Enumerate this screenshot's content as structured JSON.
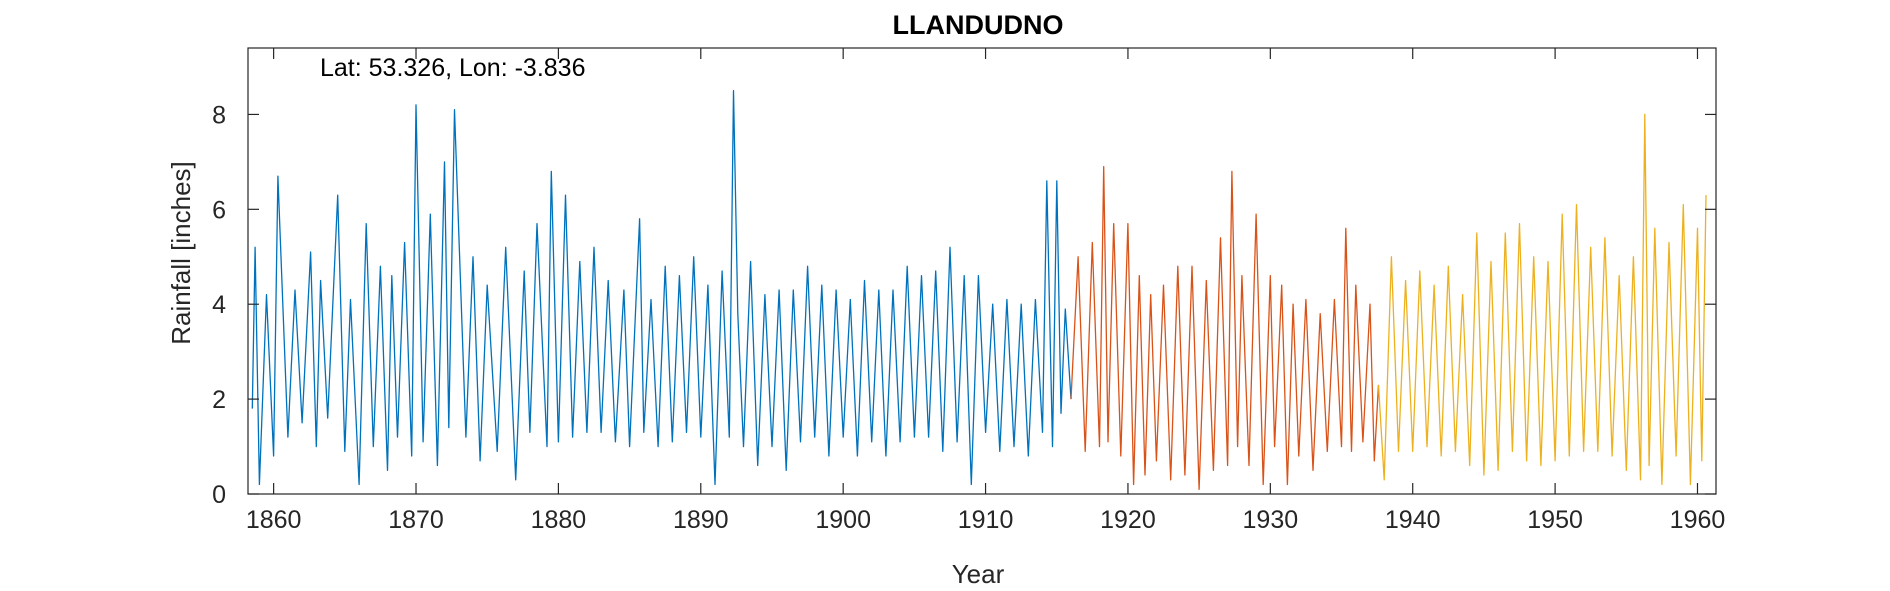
{
  "chart_data": {
    "type": "line",
    "title": "LLANDUDNO",
    "annotation": "Lat: 53.326, Lon: -3.836",
    "xlabel": "Year",
    "ylabel": "Rainfall [inches]",
    "xlim": [
      1858.2,
      1961.3
    ],
    "ylim": [
      0,
      9.4
    ],
    "xticks": [
      1860,
      1870,
      1880,
      1890,
      1900,
      1910,
      1920,
      1930,
      1940,
      1950,
      1960
    ],
    "yticks": [
      0,
      2,
      4,
      6,
      8
    ],
    "grid": false,
    "series": [
      {
        "color": "#0072BD",
        "x": [
          1858.5,
          1858.7,
          1859.0,
          1859.5,
          1860.0,
          1860.3,
          1861.0,
          1861.5,
          1862.0,
          1862.6,
          1863.0,
          1863.3,
          1863.8,
          1864.5,
          1865.0,
          1865.4,
          1866.0,
          1866.5,
          1867.0,
          1867.5,
          1868.0,
          1868.3,
          1868.7,
          1869.2,
          1869.7,
          1870.0,
          1870.5,
          1871.0,
          1871.5,
          1872.0,
          1872.3,
          1872.7,
          1873.5,
          1874.0,
          1874.5,
          1875.0,
          1875.7,
          1876.3,
          1877.0,
          1877.6,
          1878.0,
          1878.5,
          1879.2,
          1879.5,
          1880.0,
          1880.5,
          1881.0,
          1881.5,
          1882.0,
          1882.5,
          1883.0,
          1883.5,
          1884.0,
          1884.6,
          1885.0,
          1885.7,
          1886.0,
          1886.5,
          1887.0,
          1887.5,
          1888.0,
          1888.5,
          1889.0,
          1889.5,
          1890.0,
          1890.5,
          1891.0,
          1891.5,
          1892.0,
          1892.3,
          1892.6,
          1893.0,
          1893.5,
          1894.0,
          1894.5,
          1895.0,
          1895.5,
          1896.0,
          1896.5,
          1897.0,
          1897.5,
          1898.0,
          1898.5,
          1899.0,
          1899.5,
          1900.0,
          1900.5,
          1901.0,
          1901.5,
          1902.0,
          1902.5,
          1903.0,
          1903.5,
          1904.0,
          1904.5,
          1905.0,
          1905.5,
          1906.0,
          1906.5,
          1907.0,
          1907.5,
          1908.0,
          1908.5,
          1909.0,
          1909.5,
          1910.0,
          1910.5,
          1911.0,
          1911.5,
          1912.0,
          1912.5,
          1913.0,
          1913.5,
          1914.0,
          1914.3,
          1914.7,
          1915.0,
          1915.3,
          1915.6,
          1916.0
        ],
        "y": [
          1.8,
          5.2,
          0.2,
          4.2,
          0.8,
          6.7,
          1.2,
          4.3,
          1.5,
          5.1,
          1.0,
          4.5,
          1.6,
          6.3,
          0.9,
          4.1,
          0.2,
          5.7,
          1.0,
          4.8,
          0.5,
          4.6,
          1.2,
          5.3,
          0.8,
          8.2,
          1.1,
          5.9,
          0.6,
          7.0,
          1.4,
          8.1,
          1.2,
          5.0,
          0.7,
          4.4,
          0.9,
          5.2,
          0.3,
          4.7,
          1.3,
          5.7,
          1.0,
          6.8,
          1.1,
          6.3,
          1.2,
          4.9,
          1.3,
          5.2,
          1.3,
          4.5,
          1.1,
          4.3,
          1.0,
          5.8,
          1.3,
          4.1,
          1.0,
          4.8,
          1.1,
          4.6,
          1.3,
          5.0,
          1.2,
          4.4,
          0.2,
          4.7,
          1.2,
          8.5,
          3.8,
          1.0,
          4.9,
          0.6,
          4.2,
          1.0,
          4.3,
          0.5,
          4.3,
          1.1,
          4.8,
          1.2,
          4.4,
          0.8,
          4.3,
          1.2,
          4.1,
          0.8,
          4.5,
          1.1,
          4.3,
          0.8,
          4.3,
          1.1,
          4.8,
          1.2,
          4.6,
          1.2,
          4.7,
          0.9,
          5.2,
          1.1,
          4.6,
          0.2,
          4.6,
          1.3,
          4.0,
          0.9,
          4.1,
          1.0,
          4.0,
          0.8,
          4.1,
          1.3,
          6.6,
          1.0,
          6.6,
          1.7,
          3.9,
          2.0
        ]
      },
      {
        "color": "#D95319",
        "x": [
          1916.0,
          1916.5,
          1917.0,
          1917.5,
          1918.0,
          1918.3,
          1918.6,
          1919.0,
          1919.5,
          1920.0,
          1920.4,
          1920.8,
          1921.2,
          1921.6,
          1922.0,
          1922.5,
          1923.0,
          1923.5,
          1924.0,
          1924.5,
          1925.0,
          1925.5,
          1926.0,
          1926.5,
          1927.0,
          1927.3,
          1927.7,
          1928.0,
          1928.5,
          1929.0,
          1929.5,
          1930.0,
          1930.3,
          1930.8,
          1931.2,
          1931.6,
          1932.0,
          1932.5,
          1933.0,
          1933.5,
          1934.0,
          1934.5,
          1935.0,
          1935.3,
          1935.7,
          1936.0,
          1936.5,
          1937.0,
          1937.3,
          1937.6
        ],
        "y": [
          2.0,
          5.0,
          0.9,
          5.3,
          1.0,
          6.9,
          1.1,
          5.7,
          0.8,
          5.7,
          0.2,
          4.6,
          0.4,
          4.2,
          0.7,
          4.4,
          0.3,
          4.8,
          0.4,
          4.8,
          0.1,
          4.5,
          0.5,
          5.4,
          0.6,
          6.8,
          1.0,
          4.6,
          0.6,
          5.9,
          0.2,
          4.6,
          1.0,
          4.4,
          0.2,
          4.0,
          0.8,
          4.1,
          0.5,
          3.8,
          0.9,
          4.1,
          1.0,
          5.6,
          0.9,
          4.4,
          1.1,
          4.0,
          0.7,
          2.3
        ]
      },
      {
        "color": "#EDB120",
        "x": [
          1937.6,
          1938.0,
          1938.5,
          1939.0,
          1939.5,
          1940.0,
          1940.5,
          1941.0,
          1941.5,
          1942.0,
          1942.5,
          1943.0,
          1943.5,
          1944.0,
          1944.5,
          1945.0,
          1945.5,
          1946.0,
          1946.5,
          1947.0,
          1947.5,
          1948.0,
          1948.5,
          1949.0,
          1949.5,
          1950.0,
          1950.5,
          1951.0,
          1951.5,
          1952.0,
          1952.5,
          1953.0,
          1953.5,
          1954.0,
          1954.5,
          1955.0,
          1955.5,
          1956.0,
          1956.3,
          1956.6,
          1957.0,
          1957.5,
          1958.0,
          1958.5,
          1959.0,
          1959.5,
          1960.0,
          1960.3,
          1960.6
        ],
        "y": [
          2.3,
          0.3,
          5.0,
          0.9,
          4.5,
          0.9,
          4.7,
          1.0,
          4.4,
          0.8,
          4.8,
          0.9,
          4.2,
          0.6,
          5.5,
          0.4,
          4.9,
          0.5,
          5.5,
          0.9,
          5.7,
          0.7,
          5.0,
          0.6,
          4.9,
          0.7,
          5.9,
          0.8,
          6.1,
          0.9,
          5.2,
          0.9,
          5.4,
          0.8,
          4.6,
          0.5,
          5.0,
          0.3,
          8.0,
          0.6,
          5.6,
          0.2,
          5.3,
          0.8,
          6.1,
          0.2,
          5.6,
          0.7,
          6.3
        ]
      }
    ]
  }
}
